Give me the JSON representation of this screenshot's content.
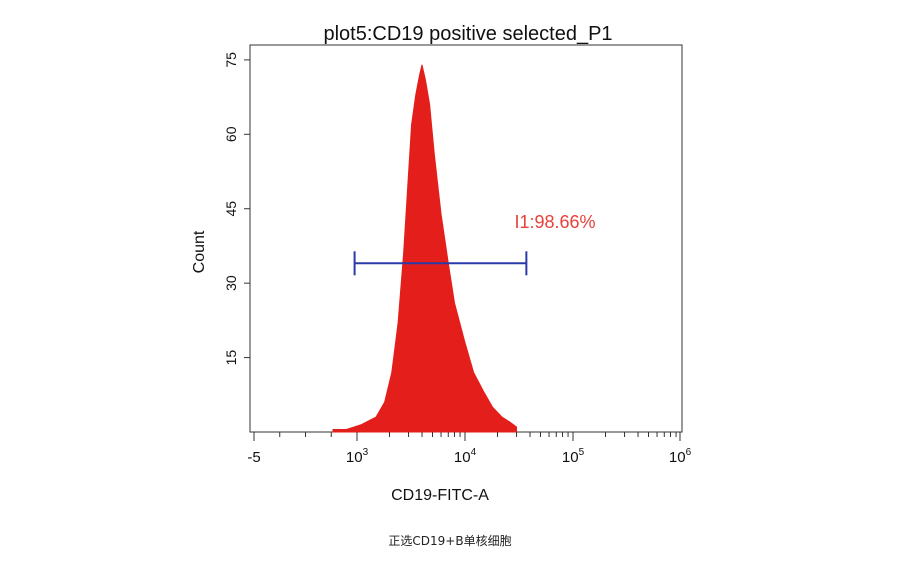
{
  "chart_data": {
    "type": "area",
    "title": "plot5:CD19 positive selected_P1",
    "xlabel": "CD19-FITC-A",
    "ylabel": "Count",
    "y_ticks": [
      15,
      30,
      45,
      60,
      75
    ],
    "y_tick_labels": [
      "15",
      "30",
      "45",
      "60",
      "75"
    ],
    "x_tick_labels": [
      {
        "base": "-5",
        "exp": ""
      },
      {
        "base": "10",
        "exp": "3"
      },
      {
        "base": "10",
        "exp": "4"
      },
      {
        "base": "10",
        "exp": "5"
      },
      {
        "base": "10",
        "exp": "6"
      }
    ],
    "x_scale": "biexponential (log decades 10^3 to 10^6)",
    "ylim": [
      0,
      78
    ],
    "series": [
      {
        "color": "#e41e1a",
        "x": [
          600,
          800,
          1100,
          1500,
          1800,
          2100,
          2400,
          2700,
          3000,
          3200,
          3500,
          3800,
          4000,
          4300,
          4700,
          5200,
          6000,
          7000,
          8000,
          10000,
          12000,
          15000,
          18000,
          22000,
          26000,
          30000
        ],
        "y": [
          0.5,
          0.5,
          1.5,
          3,
          6,
          12,
          22,
          36,
          52,
          62,
          68,
          72,
          74,
          71,
          66,
          56,
          44,
          34,
          26,
          18,
          12,
          8,
          5,
          3,
          2,
          1
        ]
      }
    ],
    "gate": {
      "label": "I1:98.66%",
      "x_range": [
        950,
        37000
      ],
      "y": 34,
      "label_color": "#e8413a",
      "bar_color": "#2a3aa8"
    }
  },
  "caption": "正选CD19+B单核细胞"
}
